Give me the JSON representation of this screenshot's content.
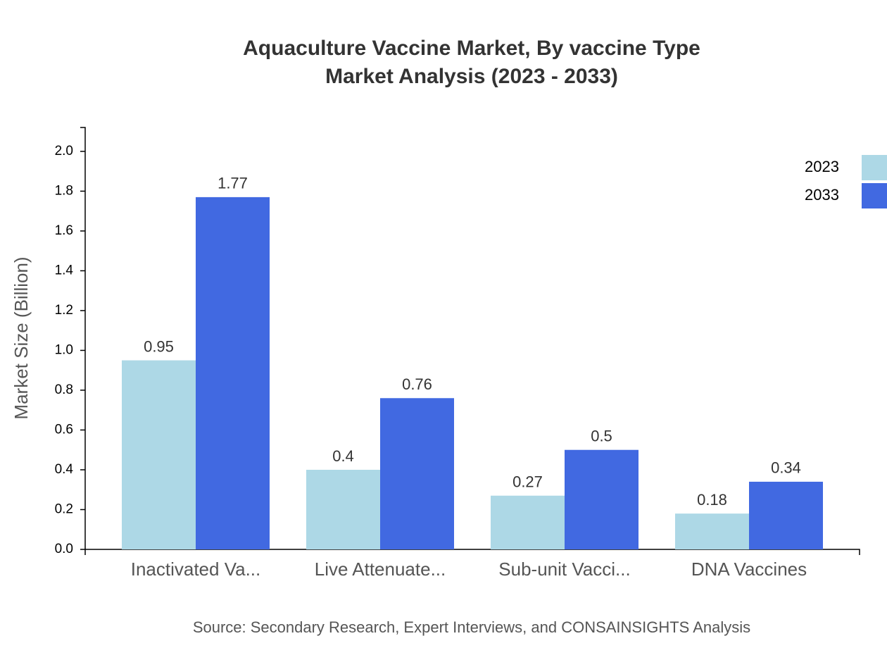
{
  "chart_data": {
    "type": "bar",
    "title": "Aquaculture Vaccine Market, By vaccine Type",
    "subtitle": "Market Analysis (2023 - 2033)",
    "y_label": "Market Size (Billion)",
    "source": "Source: Secondary Research, Expert Interviews, and CONSAINSIGHTS Analysis",
    "categories": [
      "Inactivated Va...",
      "Live Attenuate...",
      "Sub-unit Vacci...",
      "DNA Vaccines"
    ],
    "series": [
      {
        "name": "2023",
        "color": "#add8e6",
        "values": [
          0.95,
          0.4,
          0.27,
          0.18
        ]
      },
      {
        "name": "2033",
        "color": "#4169e1",
        "values": [
          1.77,
          0.76,
          0.5,
          0.34
        ]
      }
    ],
    "ylim": [
      0,
      2.12
    ],
    "yticks": [
      {
        "value": 0,
        "label": "0.0"
      },
      0.2,
      0.4,
      0.6,
      0.8,
      {
        "value": 1,
        "label": "1.0"
      },
      1.2,
      1.4,
      1.6,
      1.8,
      {
        "value": 2,
        "label": "2.0"
      }
    ],
    "legend": "top-right",
    "grid": false
  }
}
